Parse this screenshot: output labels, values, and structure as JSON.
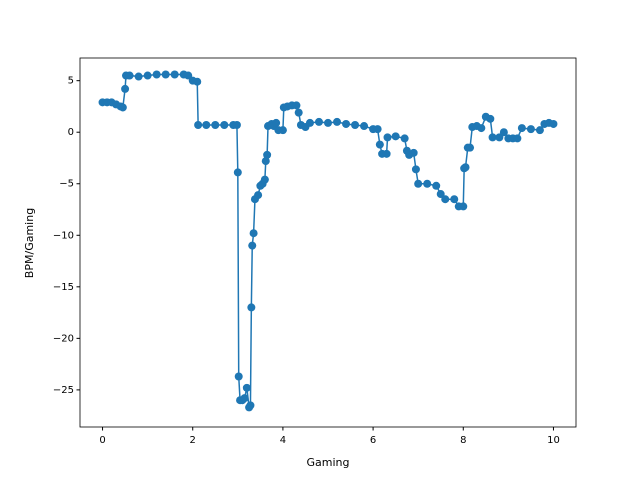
{
  "chart_data": {
    "type": "line",
    "xlabel": "Gaming",
    "ylabel": "BPM/Gaming",
    "xlim": [
      -0.5,
      10.5
    ],
    "ylim": [
      -28.6,
      7.2
    ],
    "xticks": [
      0,
      2,
      4,
      6,
      8,
      10
    ],
    "yticks": [
      5,
      0,
      {
        "value": -5,
        "label": "−5"
      },
      {
        "value": -10,
        "label": "−10"
      },
      {
        "value": -15,
        "label": "−15"
      },
      {
        "value": -20,
        "label": "−20"
      },
      {
        "value": -25,
        "label": "−25"
      }
    ],
    "marker": true,
    "series": [
      {
        "color": "#1f77b4",
        "x": [
          0,
          0.1,
          0.2,
          0.3,
          0.4,
          0.45,
          0.5,
          0.52,
          0.6,
          0.8,
          1.0,
          1.2,
          1.4,
          1.6,
          1.8,
          1.9,
          2.0,
          2.1,
          2.12,
          2.3,
          2.5,
          2.7,
          2.9,
          2.98,
          3.0,
          3.02,
          3.05,
          3.1,
          3.15,
          3.2,
          3.25,
          3.28,
          3.3,
          3.32,
          3.35,
          3.38,
          3.45,
          3.5,
          3.55,
          3.6,
          3.62,
          3.65,
          3.67,
          3.75,
          3.8,
          3.85,
          3.9,
          4.0,
          4.02,
          4.1,
          4.2,
          4.3,
          4.35,
          4.4,
          4.5,
          4.6,
          4.8,
          5.0,
          5.2,
          5.4,
          5.6,
          5.8,
          6.0,
          6.1,
          6.15,
          6.2,
          6.3,
          6.32,
          6.5,
          6.7,
          6.75,
          6.8,
          6.9,
          6.95,
          7.0,
          7.2,
          7.4,
          7.5,
          7.6,
          7.8,
          7.9,
          8.0,
          8.02,
          8.05,
          8.1,
          8.15,
          8.2,
          8.3,
          8.4,
          8.5,
          8.6,
          8.65,
          8.8,
          8.9,
          9.0,
          9.1,
          9.2,
          9.3,
          9.5,
          9.7,
          9.8,
          9.9,
          10.0
        ],
        "values": [
          2.9,
          2.9,
          2.9,
          2.7,
          2.5,
          2.4,
          4.2,
          5.5,
          5.5,
          5.4,
          5.5,
          5.6,
          5.6,
          5.6,
          5.6,
          5.5,
          5.0,
          4.9,
          0.7,
          0.7,
          0.7,
          0.7,
          0.7,
          0.7,
          -3.9,
          -23.7,
          -26,
          -26,
          -25.8,
          -24.8,
          -26.7,
          -26.5,
          -17,
          -11,
          -9.8,
          -6.5,
          -6.1,
          -5.2,
          -5.0,
          -4.6,
          -2.8,
          -2.2,
          0.6,
          0.8,
          0.6,
          0.9,
          0.2,
          0.2,
          2.4,
          2.5,
          2.6,
          2.6,
          1.9,
          0.7,
          0.5,
          0.9,
          1.0,
          0.9,
          1.0,
          0.8,
          0.7,
          0.6,
          0.3,
          0.3,
          -1.2,
          -2.1,
          -2.1,
          -0.5,
          -0.4,
          -0.6,
          -1.8,
          -2.2,
          -2.0,
          -3.6,
          -5.0,
          -5.0,
          -5.2,
          -6.0,
          -6.5,
          -6.5,
          -7.2,
          -7.2,
          -3.5,
          -3.4,
          -1.5,
          -1.5,
          0.5,
          0.6,
          0.4,
          1.5,
          1.3,
          -0.5,
          -0.5,
          0.0,
          -0.6,
          -0.6,
          -0.6,
          0.4,
          0.3,
          0.2,
          0.8,
          0.9,
          0.8
        ]
      }
    ]
  }
}
